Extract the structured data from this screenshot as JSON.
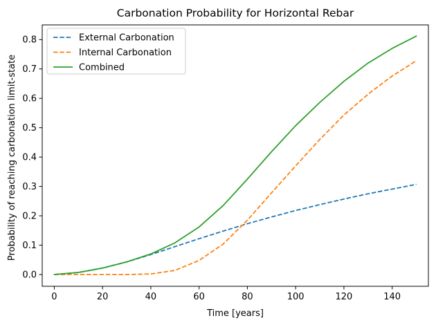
{
  "chart_data": {
    "type": "line",
    "title": "Carbonation Probability for Horizontal Rebar",
    "xlabel": "Time [years]",
    "ylabel": "Probability of reaching carbonation limit-state",
    "xlim": [
      -5,
      155
    ],
    "ylim": [
      -0.04,
      0.85
    ],
    "xticks": [
      0,
      20,
      40,
      60,
      80,
      100,
      120,
      140
    ],
    "yticks": [
      0.0,
      0.1,
      0.2,
      0.3,
      0.4,
      0.5,
      0.6,
      0.7,
      0.8
    ],
    "ytick_labels": [
      "0.0",
      "0.1",
      "0.2",
      "0.3",
      "0.4",
      "0.5",
      "0.6",
      "0.7",
      "0.8"
    ],
    "grid": false,
    "legend_position": "upper-left",
    "x": [
      0,
      10,
      20,
      30,
      40,
      50,
      60,
      70,
      80,
      90,
      100,
      110,
      120,
      130,
      140,
      150
    ],
    "series": [
      {
        "name": "External Carbonation",
        "style": "dashed",
        "color": "#1f77b4",
        "values": [
          0.0,
          0.007,
          0.022,
          0.043,
          0.068,
          0.095,
          0.122,
          0.148,
          0.173,
          0.196,
          0.218,
          0.238,
          0.257,
          0.275,
          0.291,
          0.307
        ]
      },
      {
        "name": "Internal Carbonation",
        "style": "dashed",
        "color": "#ff7f0e",
        "values": [
          0.0,
          0.0,
          0.0,
          0.0,
          0.002,
          0.014,
          0.048,
          0.104,
          0.185,
          0.278,
          0.37,
          0.46,
          0.543,
          0.614,
          0.676,
          0.728
        ]
      },
      {
        "name": "Combined",
        "style": "solid",
        "color": "#2ca02c",
        "values": [
          0.0,
          0.007,
          0.022,
          0.043,
          0.07,
          0.108,
          0.162,
          0.235,
          0.325,
          0.418,
          0.507,
          0.586,
          0.658,
          0.72,
          0.77,
          0.812
        ]
      }
    ]
  }
}
